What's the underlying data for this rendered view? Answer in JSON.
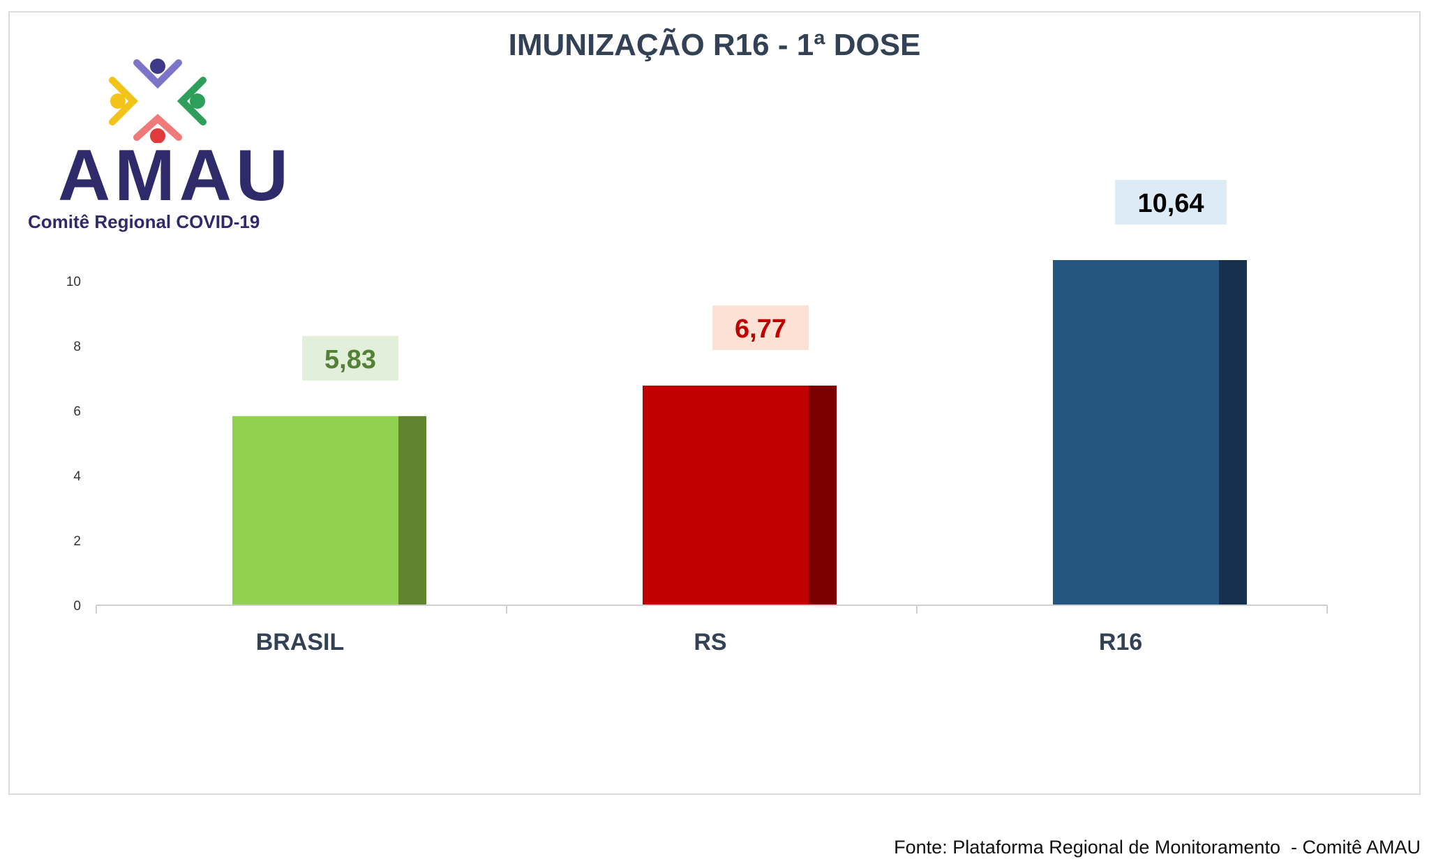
{
  "chart_data": {
    "type": "bar",
    "title": "IMUNIZAÇÃO R16 - 1ª DOSE",
    "categories": [
      "BRASIL",
      "RS",
      "R16"
    ],
    "values": [
      5.83,
      6.77,
      10.64
    ],
    "value_labels": [
      "5,83",
      "6,77",
      "10,64"
    ],
    "yticks": [
      "0",
      "2",
      "4",
      "6",
      "8",
      "10"
    ],
    "ylim": [
      0,
      10.64
    ],
    "xlabel": "",
    "ylabel": "",
    "grid": false,
    "legend": "none",
    "colors": {
      "bars": [
        "#92d050",
        "#c00000",
        "#245580"
      ],
      "bar_sides": [
        "#5f8530",
        "#7a0000",
        "#17304e"
      ],
      "label_text": [
        "#538135",
        "#c00000",
        "#000000"
      ],
      "label_bg": [
        "#e2efda",
        "#fbe2d5",
        "#ddebf7"
      ]
    }
  },
  "logo": {
    "word": "AMAU",
    "subtitle": "Comitê Regional COVID-19",
    "icon": "people-circle-logo-icon"
  },
  "footer": {
    "source": "Fonte: Plataforma Regional de Monitoramento  - Comitê AMAU"
  }
}
